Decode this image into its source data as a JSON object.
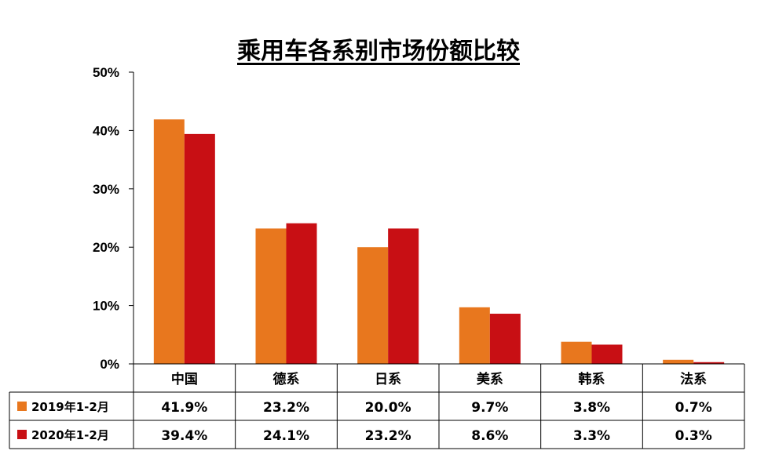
{
  "chart_data": {
    "type": "bar",
    "title": "乘用车各系别市场份额比较",
    "xlabel": "",
    "ylabel": "",
    "ylim": [
      0,
      50
    ],
    "y_ticks": [
      "0%",
      "10%",
      "20%",
      "30%",
      "40%",
      "50%"
    ],
    "categories": [
      "中国",
      "德系",
      "日系",
      "美系",
      "韩系",
      "法系"
    ],
    "series": [
      {
        "name": "2019年1-2月",
        "color": "#E8771E",
        "values": [
          41.9,
          23.2,
          20.0,
          9.7,
          3.8,
          0.7
        ],
        "labels": [
          "41.9%",
          "23.2%",
          "20.0%",
          "9.7%",
          "3.8%",
          "0.7%"
        ]
      },
      {
        "name": "2020年1-2月",
        "color": "#C80F14",
        "values": [
          39.4,
          24.1,
          23.2,
          8.6,
          3.3,
          0.3
        ],
        "labels": [
          "39.4%",
          "24.1%",
          "23.2%",
          "8.6%",
          "3.3%",
          "0.3%"
        ]
      }
    ],
    "grid": false,
    "legend": "data-table"
  }
}
